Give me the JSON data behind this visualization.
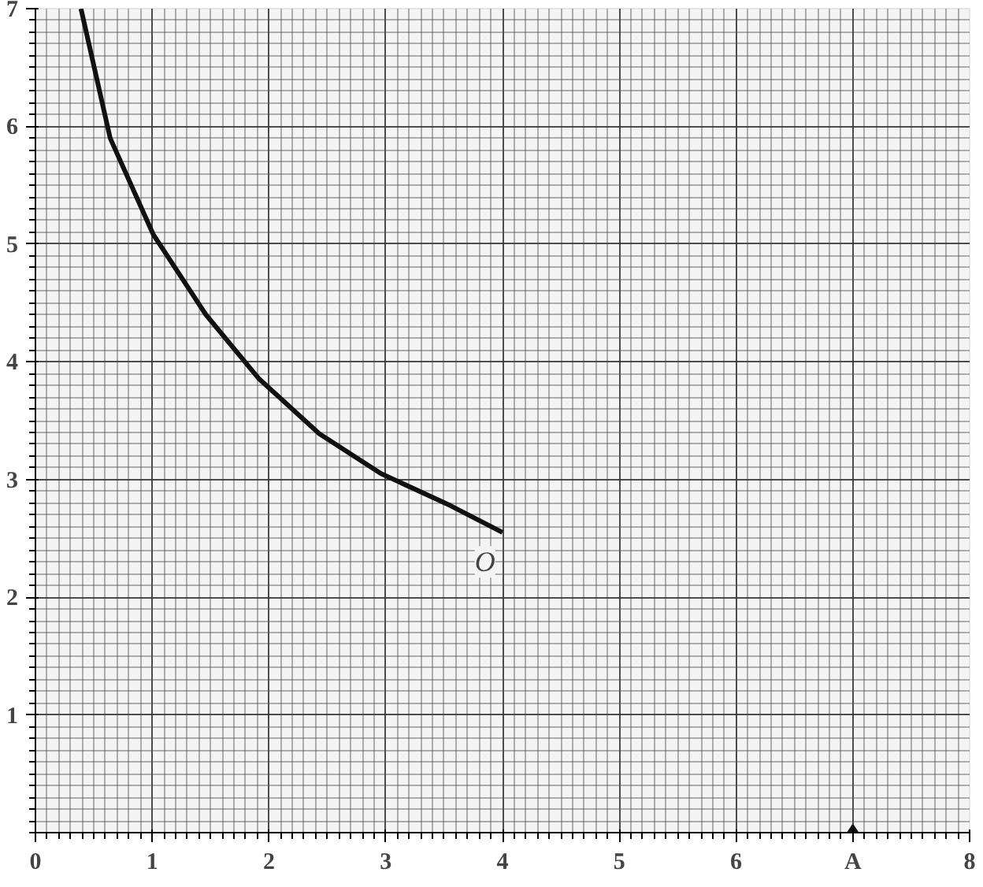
{
  "chart_data": {
    "type": "line",
    "xlim": [
      0,
      8
    ],
    "ylim": [
      0,
      7
    ],
    "xticks": [
      0,
      1,
      2,
      3,
      4,
      5,
      6,
      {
        "value": 7,
        "label": "A"
      },
      8
    ],
    "yticks": [
      1,
      2,
      3,
      4,
      5,
      6,
      7
    ],
    "grid": true,
    "series": [
      {
        "color": "#111111",
        "marker": "none",
        "line_style": "solid",
        "x": [
          0.39,
          0.64,
          1.01,
          1.46,
          1.91,
          2.43,
          2.96,
          3.55,
          4.0
        ],
        "values": [
          7.0,
          5.9,
          5.08,
          4.4,
          3.86,
          3.39,
          3.05,
          2.78,
          2.55
        ]
      },
      {
        "type": "scatter",
        "color": "#111111",
        "marker": "diamond",
        "x": [
          7
        ],
        "values": [
          0
        ]
      }
    ],
    "annotations": [
      {
        "text": "O",
        "x": 3.85,
        "y": 2.3
      }
    ]
  }
}
